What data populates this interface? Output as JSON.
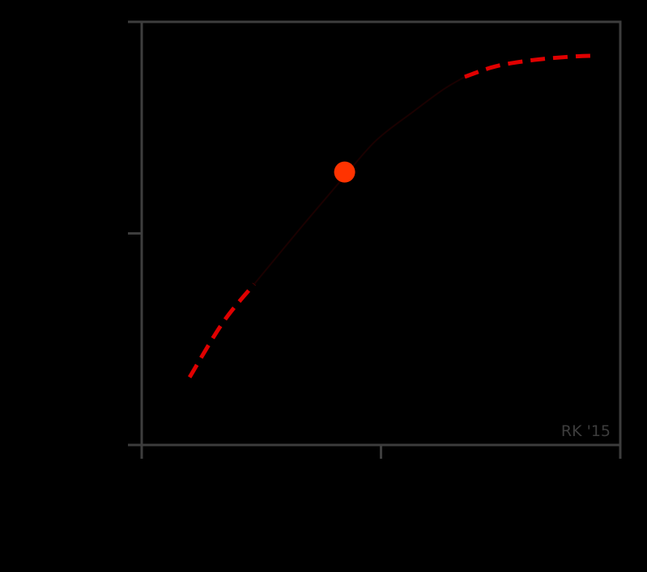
{
  "colors": {
    "background": "#000000",
    "axis": "#3d3d3d",
    "curve_solid": "#1a0000",
    "curve_dashed": "#e00000",
    "marker": "#ff3300",
    "watermark": "#3d3d3d"
  },
  "watermark": "RK '15",
  "chart_data": {
    "type": "line",
    "title": "",
    "xlabel": "",
    "ylabel": "",
    "xlim": [
      0,
      1
    ],
    "ylim": [
      0,
      1
    ],
    "xticks": [
      0,
      0.5,
      1
    ],
    "yticks": [
      0,
      0.5,
      1
    ],
    "xtick_labels": [
      "",
      "",
      ""
    ],
    "ytick_labels": [
      "",
      "",
      ""
    ],
    "grid": false,
    "series": [
      {
        "style": "dashed",
        "color": "#e00000",
        "x": [
          0.1,
          0.17,
          0.235
        ],
        "y": [
          0.16,
          0.29,
          0.38
        ]
      },
      {
        "style": "solid",
        "color": "#1a0000",
        "x": [
          0.235,
          0.33,
          0.42,
          0.49,
          0.57,
          0.63,
          0.675
        ],
        "y": [
          0.38,
          0.51,
          0.63,
          0.72,
          0.79,
          0.84,
          0.87
        ]
      },
      {
        "style": "dashed",
        "color": "#e00000",
        "x": [
          0.675,
          0.74,
          0.82,
          0.9,
          0.945
        ],
        "y": [
          0.87,
          0.895,
          0.91,
          0.918,
          0.92
        ]
      }
    ],
    "points": [
      {
        "x": 0.424,
        "y": 0.645,
        "color": "#ff3300"
      }
    ]
  }
}
